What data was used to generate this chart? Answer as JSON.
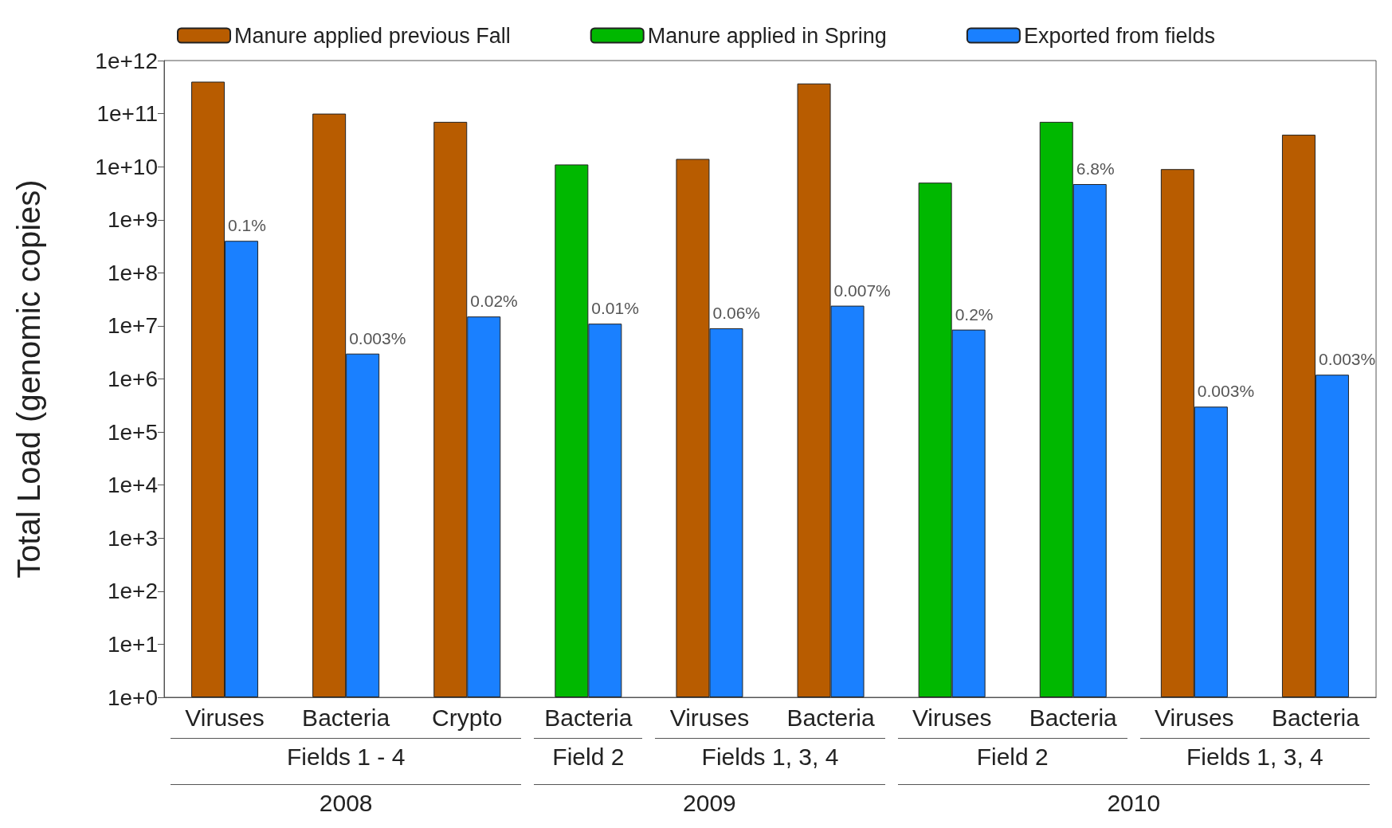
{
  "chart_data": {
    "type": "bar",
    "ylabel": "Total Load (genomic copies)",
    "categories": [
      "Viruses",
      "Bacteria",
      "Crypto",
      "Bacteria",
      "Viruses",
      "Bacteria",
      "Viruses",
      "Bacteria",
      "Viruses",
      "Bacteria"
    ],
    "series": [
      {
        "name": "Manure applied previous Fall",
        "color": "#b85c00",
        "values": [
          400000000000.0,
          100000000000.0,
          70000000000.0,
          null,
          14000000000.0,
          370000000000.0,
          null,
          null,
          9000000000.0,
          40000000000.0
        ]
      },
      {
        "name": "Manure applied in Spring",
        "color": "#00b800",
        "values": [
          null,
          null,
          null,
          11000000000.0,
          null,
          null,
          5000000000.0,
          70000000000.0,
          null,
          null
        ]
      },
      {
        "name": "Exported from fields",
        "color": "#1a80ff",
        "values": [
          400000000.0,
          3000000.0,
          15000000.0,
          11000000.0,
          9000000.0,
          24000000.0,
          8500000.0,
          4700000000.0,
          300000.0,
          1200000.0
        ]
      }
    ],
    "log": "y",
    "ylim": [
      1,
      1000000000000.0
    ],
    "yticks": [
      {
        "value": 1,
        "label": "1e+0"
      },
      {
        "value": 10,
        "label": "1e+1"
      },
      {
        "value": 100,
        "label": "1e+2"
      },
      {
        "value": 1000,
        "label": "1e+3"
      },
      {
        "value": 10000,
        "label": "1e+4"
      },
      {
        "value": 100000,
        "label": "1e+5"
      },
      {
        "value": 1000000,
        "label": "1e+6"
      },
      {
        "value": 10000000,
        "label": "1e+7"
      },
      {
        "value": 100000000,
        "label": "1e+8"
      },
      {
        "value": 1000000000,
        "label": "1e+9"
      },
      {
        "value": 10000000000,
        "label": "1e+10"
      },
      {
        "value": 100000000000,
        "label": "1e+11"
      },
      {
        "value": 1000000000000,
        "label": "1e+12"
      }
    ],
    "annotations": [
      "Fields 1 - 4",
      "Field 2",
      "Fields 1, 3, 4",
      "Field 2",
      "Fields 1, 3, 4",
      "2008",
      "2009",
      "2010",
      "0.1%",
      "0.003%",
      "0.02%",
      "0.01%",
      "0.06%",
      "0.007%",
      "0.2%",
      "6.8%",
      "0.003%",
      "0.003%"
    ],
    "grid": false,
    "legend": "top"
  }
}
